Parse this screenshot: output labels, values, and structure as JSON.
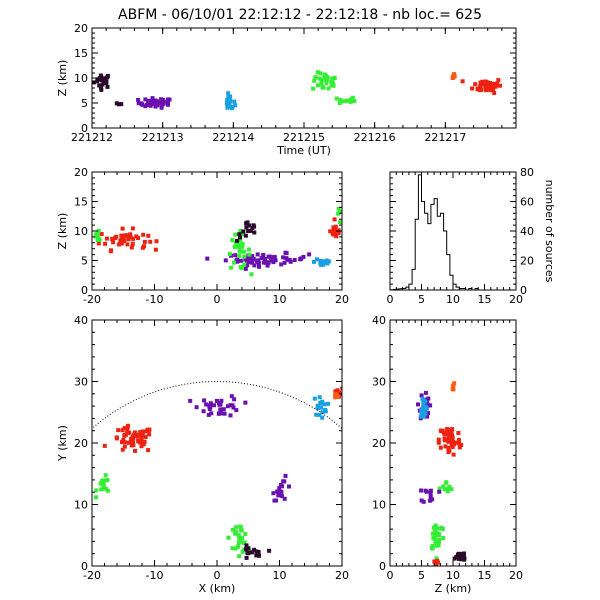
{
  "title": "ABFM - 06/10/01 22:12:12 - 22:12:18 - nb loc.=    625",
  "colors": {
    "black": "#2a0a2a",
    "purple": "#6a10b0",
    "blue": "#1aa0e0",
    "green": "#33ee33",
    "red": "#ee2211",
    "orange": "#ff5a10",
    "axis": "#000000",
    "background": "#ffffff"
  },
  "chart_data": [
    {
      "id": "time_height",
      "type": "scatter",
      "xlabel": "Time (UT)",
      "ylabel": "Z (km)",
      "xlim": [
        0,
        6
      ],
      "ylim": [
        0,
        20
      ],
      "x_tick_values": [
        0,
        1,
        2,
        3,
        4,
        5
      ],
      "x_tick_labels": [
        "221212",
        "221213",
        "221214",
        "221215",
        "221216",
        "221217"
      ],
      "y_ticks": [
        0,
        5,
        10,
        15,
        20
      ],
      "clusters": [
        {
          "color": "black",
          "xc": 0.15,
          "yc": 9.5,
          "sx": 0.1,
          "sy": 1.2,
          "n": 22
        },
        {
          "color": "black",
          "xc": 0.4,
          "yc": 4.8,
          "sx": 0.05,
          "sy": 0.4,
          "n": 3
        },
        {
          "color": "purple",
          "xc": 0.9,
          "yc": 5.0,
          "sx": 0.2,
          "sy": 0.8,
          "n": 40
        },
        {
          "color": "blue",
          "xc": 1.95,
          "yc": 5.0,
          "sx": 0.06,
          "sy": 1.3,
          "n": 18
        },
        {
          "color": "green",
          "xc": 3.3,
          "yc": 9.2,
          "sx": 0.15,
          "sy": 1.5,
          "n": 30
        },
        {
          "color": "green",
          "xc": 3.6,
          "yc": 5.5,
          "sx": 0.1,
          "sy": 0.6,
          "n": 14
        },
        {
          "color": "orange",
          "xc": 5.1,
          "yc": 10.5,
          "sx": 0.05,
          "sy": 0.5,
          "n": 6
        },
        {
          "color": "red",
          "xc": 5.6,
          "yc": 8.5,
          "sx": 0.17,
          "sy": 1.2,
          "n": 50
        }
      ]
    },
    {
      "id": "x_z",
      "type": "scatter",
      "xlabel": "",
      "ylabel": "Z (km)",
      "xlim": [
        -20,
        20
      ],
      "ylim": [
        0,
        20
      ],
      "x_ticks": [
        -20,
        -10,
        0,
        10,
        20
      ],
      "y_ticks": [
        0,
        5,
        10,
        15,
        20
      ],
      "clusters": [
        {
          "color": "red",
          "xc": -15,
          "yc": 8.5,
          "sx": 3.2,
          "sy": 1.4,
          "n": 45
        },
        {
          "color": "green",
          "xc": -19,
          "yc": 9.0,
          "sx": 0.7,
          "sy": 1.0,
          "n": 8
        },
        {
          "color": "purple",
          "xc": 8,
          "yc": 5.2,
          "sx": 5.5,
          "sy": 0.8,
          "n": 60
        },
        {
          "color": "green",
          "xc": 3.5,
          "yc": 6.5,
          "sx": 1.5,
          "sy": 2.5,
          "n": 30
        },
        {
          "color": "black",
          "xc": 5,
          "yc": 10,
          "sx": 1.5,
          "sy": 1.5,
          "n": 15
        },
        {
          "color": "blue",
          "xc": 17,
          "yc": 4.8,
          "sx": 1.2,
          "sy": 0.8,
          "n": 18
        },
        {
          "color": "red",
          "xc": 19,
          "yc": 10,
          "sx": 0.7,
          "sy": 1.0,
          "n": 18
        },
        {
          "color": "green",
          "xc": 19.5,
          "yc": 12.5,
          "sx": 0.3,
          "sy": 1.0,
          "n": 4
        }
      ]
    },
    {
      "id": "histogram",
      "type": "bar",
      "xlabel": "",
      "ylabel": "number of sources",
      "xlim": [
        0,
        20
      ],
      "ylim": [
        0,
        80
      ],
      "x_ticks": [
        0,
        5,
        10,
        15,
        20
      ],
      "y_ticks": [
        0,
        20,
        40,
        60,
        80
      ],
      "bin_width": 0.5,
      "bin_start": 2.0,
      "values": [
        1,
        2,
        4,
        14,
        48,
        78,
        60,
        52,
        45,
        58,
        62,
        50,
        52,
        40,
        24,
        10,
        4,
        2,
        1,
        1,
        0,
        1,
        0,
        1
      ]
    },
    {
      "id": "x_y",
      "type": "scatter",
      "xlabel": "X (km)",
      "ylabel": "Y (km)",
      "xlim": [
        -20,
        20
      ],
      "ylim": [
        0,
        40
      ],
      "x_ticks": [
        -20,
        -10,
        0,
        10,
        20
      ],
      "y_ticks": [
        0,
        10,
        20,
        30,
        40
      ],
      "range_arc_radius": 30,
      "clusters": [
        {
          "color": "red",
          "xc": -13.5,
          "yc": 20.5,
          "sx": 2.8,
          "sy": 1.8,
          "n": 55
        },
        {
          "color": "green",
          "xc": -18,
          "yc": 13,
          "sx": 1.0,
          "sy": 1.2,
          "n": 14
        },
        {
          "color": "purple",
          "xc": 0.5,
          "yc": 26,
          "sx": 2.8,
          "sy": 1.4,
          "n": 35
        },
        {
          "color": "purple",
          "xc": 10.5,
          "yc": 12.5,
          "sx": 1.3,
          "sy": 1.5,
          "n": 18
        },
        {
          "color": "green",
          "xc": 3.5,
          "yc": 4.5,
          "sx": 1.2,
          "sy": 2.0,
          "n": 32
        },
        {
          "color": "black",
          "xc": 5.5,
          "yc": 2.0,
          "sx": 1.5,
          "sy": 1.0,
          "n": 15
        },
        {
          "color": "blue",
          "xc": 16.5,
          "yc": 26,
          "sx": 0.9,
          "sy": 1.4,
          "n": 18
        },
        {
          "color": "red",
          "xc": 19.3,
          "yc": 28,
          "sx": 0.6,
          "sy": 0.7,
          "n": 15
        },
        {
          "color": "orange",
          "xc": 19.0,
          "yc": 27.5,
          "sx": 0.4,
          "sy": 0.4,
          "n": 5
        }
      ]
    },
    {
      "id": "z_y",
      "type": "scatter",
      "xlabel": "Z (km)",
      "ylabel": "",
      "xlim": [
        0,
        20
      ],
      "ylim": [
        0,
        40
      ],
      "x_ticks": [
        0,
        5,
        10,
        15,
        20
      ],
      "y_ticks": [
        0,
        10,
        20,
        30,
        40
      ],
      "clusters": [
        {
          "color": "red",
          "xc": 9.5,
          "yc": 20.5,
          "sx": 1.4,
          "sy": 2.2,
          "n": 55
        },
        {
          "color": "green",
          "xc": 7.5,
          "yc": 5.0,
          "sx": 1.0,
          "sy": 2.2,
          "n": 30
        },
        {
          "color": "green",
          "xc": 9.0,
          "yc": 12.5,
          "sx": 1.0,
          "sy": 1.0,
          "n": 10
        },
        {
          "color": "purple",
          "xc": 5.5,
          "yc": 26.0,
          "sx": 0.6,
          "sy": 2.0,
          "n": 25
        },
        {
          "color": "purple",
          "xc": 6.5,
          "yc": 11.5,
          "sx": 1.0,
          "sy": 1.2,
          "n": 12
        },
        {
          "color": "blue",
          "xc": 5.3,
          "yc": 26.0,
          "sx": 0.5,
          "sy": 1.5,
          "n": 18
        },
        {
          "color": "black",
          "xc": 11.0,
          "yc": 1.5,
          "sx": 1.2,
          "sy": 0.8,
          "n": 15
        },
        {
          "color": "orange",
          "xc": 10.0,
          "yc": 29.0,
          "sx": 0.5,
          "sy": 0.5,
          "n": 5
        },
        {
          "color": "red",
          "xc": 7.0,
          "yc": 0.5,
          "sx": 0.5,
          "sy": 0.3,
          "n": 4
        }
      ]
    }
  ]
}
